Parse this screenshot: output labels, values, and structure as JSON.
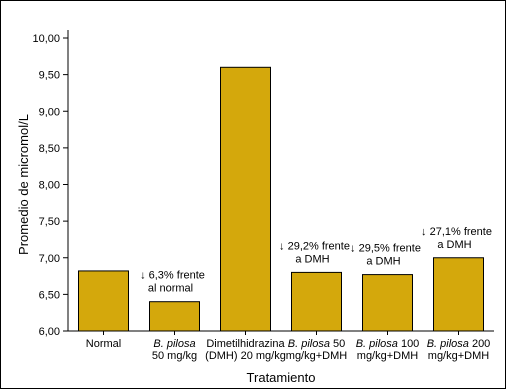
{
  "chart_data": {
    "type": "bar",
    "title": "",
    "xlabel": "Tratamiento",
    "ylabel": "Promedio de micromol/L",
    "ylim": [
      6.0,
      10.0
    ],
    "y_ticks": [
      "6,00",
      "6,50",
      "7,00",
      "7,50",
      "8,00",
      "8,50",
      "9,00",
      "9,50",
      "10,00"
    ],
    "categories": [
      [
        "Normal"
      ],
      [
        "B. pilosa",
        "50 mg/kg"
      ],
      [
        "Dimetilhidrazina",
        "(DMH) 20 mg/kg"
      ],
      [
        "B. pilosa 50",
        "mg/kg+DMH"
      ],
      [
        "B. pilosa 100",
        "mg/kg+DMH"
      ],
      [
        "B. pilosa 200",
        "mg/kg+DMH"
      ]
    ],
    "values": [
      6.82,
      6.4,
      9.6,
      6.8,
      6.77,
      7.0
    ],
    "annotations": [
      [],
      [
        "↓ 6,3% frente",
        "al normal"
      ],
      [],
      [
        "↓ 29,2% frente",
        "a DMH"
      ],
      [
        "↓ 29,5% frente",
        "a DMH"
      ],
      [
        "↓ 27,1% frente",
        "a DMH"
      ]
    ],
    "grid": false,
    "legend": "none",
    "bar_color": "#D4A80C"
  }
}
